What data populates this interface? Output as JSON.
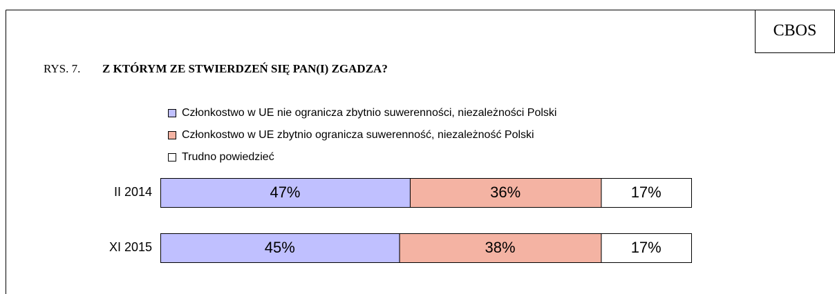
{
  "chart_data": {
    "type": "bar",
    "orientation": "horizontal",
    "stacked": true,
    "source": "CBOS",
    "figure_label": "RYS. 7.",
    "title": "Z KTÓRYM ZE STWIERDZEŃ SIĘ PAN(I) ZGADZA?",
    "categories": [
      "II 2014",
      "XI 2015"
    ],
    "xlim": [
      0,
      100
    ],
    "series": [
      {
        "name": "Członkostwo w UE nie ogranicza zbytnio suwerenności, niezależności Polski",
        "color": "#c0c0ff",
        "values": [
          47,
          45
        ],
        "value_labels": [
          "47%",
          "45%"
        ]
      },
      {
        "name": "Członkostwo w UE zbytnio ogranicza suwerenność, niezależność Polski",
        "color": "#f4b3a3",
        "values": [
          36,
          38
        ],
        "value_labels": [
          "36%",
          "38%"
        ]
      },
      {
        "name": "Trudno powiedzieć",
        "color": "#ffffff",
        "values": [
          17,
          17
        ],
        "value_labels": [
          "17%",
          "17%"
        ]
      }
    ]
  }
}
